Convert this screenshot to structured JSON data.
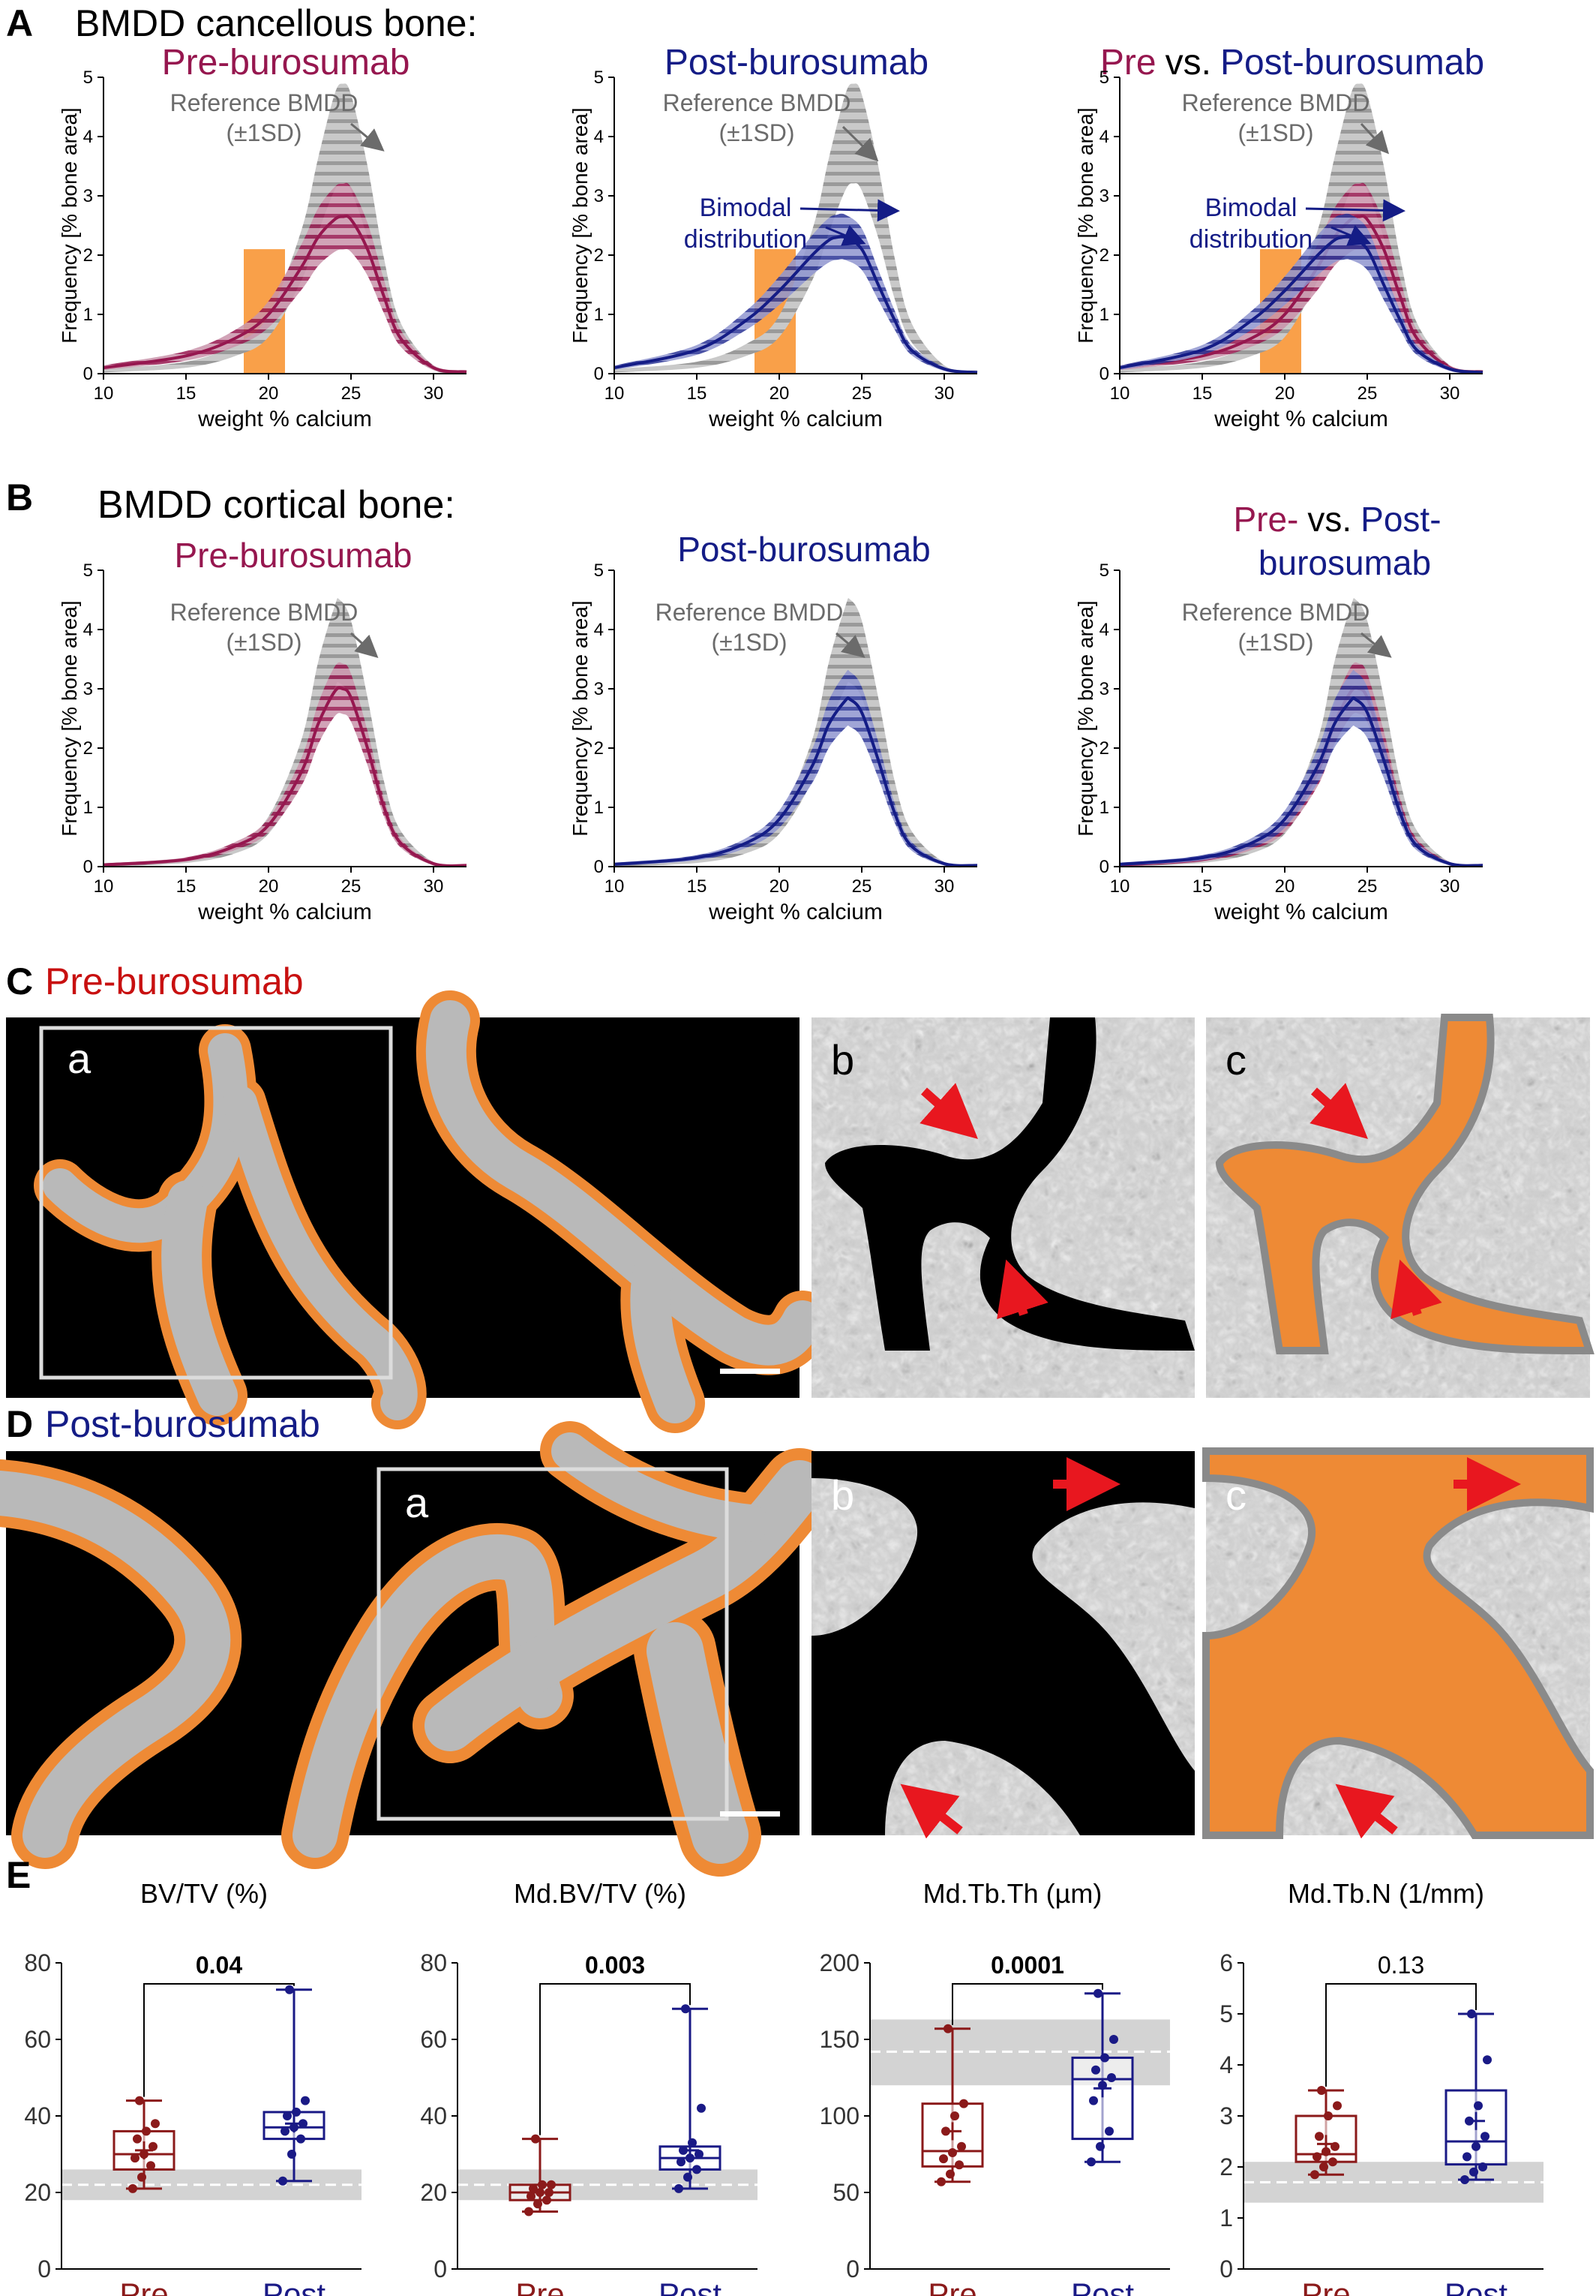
{
  "panel_letters": [
    "A",
    "B",
    "C",
    "D",
    "E"
  ],
  "section_A_title": "BMDD cancellous bone:",
  "section_B_title": "BMDD cortical bone:",
  "section_C_title": "Pre-burosumab",
  "section_D_title": "Post-burosumab",
  "image_tiles": [
    "a",
    "b",
    "c"
  ],
  "colors": {
    "pre": "#96174f",
    "post": "#141c86",
    "reference": "#9a9a9a",
    "annotation_gray": "#6b6b6b",
    "highlight": "#f9a049",
    "bone_orange": "#ee8a35",
    "arrow_red": "#e8171f",
    "box_pre": "#8b1a1a",
    "box_post": "#1a1a86",
    "ref_band": "#d3d3d3"
  },
  "bmdd_axes": {
    "xlabel": "weight % calcium",
    "ylabel": "Frequency [% bone area]",
    "xlim": [
      10,
      32
    ],
    "ylim": [
      0,
      5
    ],
    "xticks": [
      "10",
      "15",
      "20",
      "25",
      "30"
    ],
    "yticks": [
      "0",
      "1",
      "2",
      "3",
      "4",
      "5"
    ]
  },
  "annotations": {
    "reference_line1": "Reference BMDD",
    "reference_line2": "(±1SD)",
    "bimodal_line1": "Bimodal",
    "bimodal_line2": "distribution"
  },
  "chart_titles": {
    "pre": "Pre-burosumab",
    "post": "Post-burosumab",
    "pre_word": "Pre",
    "vs_word": "vs.",
    "post_word": "Post-burosumab",
    "b3_line1_pre": "Pre-",
    "b3_line1_vs": "vs.",
    "b3_line1_post": "Post-",
    "b3_line2": "burosumab"
  },
  "chart_data": [
    {
      "type": "area",
      "panel": "A1",
      "highlight_range_x": [
        18.5,
        21
      ],
      "highlight_height_y": 2.1,
      "series": [
        {
          "name": "Reference BMDD",
          "x": [
            10,
            15,
            18,
            20,
            22,
            23,
            24,
            24.5,
            25,
            26,
            27,
            28,
            30,
            32
          ],
          "y": [
            0.05,
            0.15,
            0.4,
            0.8,
            2.0,
            3.0,
            3.9,
            4.05,
            3.9,
            2.9,
            1.6,
            0.7,
            0.1,
            0.03
          ],
          "sd": 0.45
        },
        {
          "name": "Pre-burosumab",
          "x": [
            10,
            15,
            18,
            20,
            22,
            23,
            24,
            24.5,
            25,
            26,
            27,
            28,
            30,
            32
          ],
          "y": [
            0.1,
            0.3,
            0.6,
            1.0,
            1.8,
            2.3,
            2.6,
            2.65,
            2.6,
            2.1,
            1.3,
            0.6,
            0.1,
            0.03
          ],
          "sd": 0.45
        }
      ]
    },
    {
      "type": "area",
      "panel": "A2",
      "highlight_range_x": [
        18.5,
        21
      ],
      "highlight_height_y": 2.1,
      "series": [
        {
          "name": "Reference BMDD",
          "x": [
            10,
            15,
            18,
            20,
            22,
            23,
            24,
            24.5,
            25,
            26,
            27,
            28,
            30,
            32
          ],
          "y": [
            0.05,
            0.15,
            0.4,
            0.8,
            2.0,
            3.0,
            3.9,
            4.05,
            3.9,
            2.9,
            1.6,
            0.7,
            0.1,
            0.03
          ],
          "sd": 0.45
        },
        {
          "name": "Post-burosumab",
          "x": [
            10,
            15,
            18,
            20,
            22,
            23,
            23.5,
            24,
            25,
            26,
            27,
            28,
            30,
            32
          ],
          "y": [
            0.1,
            0.4,
            0.9,
            1.4,
            2.0,
            2.25,
            2.3,
            2.3,
            2.1,
            1.5,
            0.9,
            0.4,
            0.08,
            0.02
          ],
          "sd": 0.35
        }
      ]
    },
    {
      "type": "area",
      "panel": "A3",
      "highlight_range_x": [
        18.5,
        21
      ],
      "highlight_height_y": 2.1,
      "series": [
        {
          "name": "Reference BMDD",
          "x": [
            10,
            15,
            18,
            20,
            22,
            23,
            24,
            24.5,
            25,
            26,
            27,
            28,
            30,
            32
          ],
          "y": [
            0.05,
            0.15,
            0.4,
            0.8,
            2.0,
            3.0,
            3.9,
            4.05,
            3.9,
            2.9,
            1.6,
            0.7,
            0.1,
            0.03
          ],
          "sd": 0.45
        },
        {
          "name": "Pre-burosumab",
          "x": [
            10,
            15,
            18,
            20,
            22,
            23,
            24,
            24.5,
            25,
            26,
            27,
            28,
            30,
            32
          ],
          "y": [
            0.1,
            0.3,
            0.6,
            1.0,
            1.8,
            2.3,
            2.6,
            2.65,
            2.6,
            2.1,
            1.3,
            0.6,
            0.1,
            0.03
          ],
          "sd": 0.45
        },
        {
          "name": "Post-burosumab",
          "x": [
            10,
            15,
            18,
            20,
            22,
            23,
            23.5,
            24,
            25,
            26,
            27,
            28,
            30,
            32
          ],
          "y": [
            0.1,
            0.4,
            0.9,
            1.4,
            2.0,
            2.25,
            2.3,
            2.3,
            2.1,
            1.5,
            0.9,
            0.4,
            0.08,
            0.02
          ],
          "sd": 0.35
        }
      ]
    },
    {
      "type": "area",
      "panel": "B1",
      "series": [
        {
          "name": "Reference BMDD",
          "x": [
            10,
            15,
            18,
            20,
            22,
            23,
            24,
            24.3,
            25,
            26,
            27,
            28,
            30,
            32
          ],
          "y": [
            0.03,
            0.1,
            0.3,
            0.7,
            1.8,
            2.9,
            3.7,
            3.8,
            3.5,
            2.4,
            1.2,
            0.5,
            0.05,
            0.02
          ],
          "sd": 0.4
        },
        {
          "name": "Pre-burosumab",
          "x": [
            10,
            15,
            18,
            20,
            22,
            23,
            24,
            24.5,
            25,
            26,
            27,
            28,
            30,
            32
          ],
          "y": [
            0.03,
            0.12,
            0.35,
            0.7,
            1.6,
            2.4,
            2.95,
            3.0,
            2.85,
            2.0,
            1.0,
            0.4,
            0.05,
            0.02
          ],
          "sd": 0.3
        }
      ]
    },
    {
      "type": "area",
      "panel": "B2",
      "series": [
        {
          "name": "Reference BMDD",
          "x": [
            10,
            15,
            18,
            20,
            22,
            23,
            24,
            24.3,
            25,
            26,
            27,
            28,
            30,
            32
          ],
          "y": [
            0.03,
            0.1,
            0.3,
            0.7,
            1.8,
            2.9,
            3.7,
            3.8,
            3.5,
            2.4,
            1.2,
            0.5,
            0.05,
            0.02
          ],
          "sd": 0.4
        },
        {
          "name": "Post-burosumab",
          "x": [
            10,
            15,
            18,
            20,
            22,
            23,
            24,
            24.3,
            25,
            26,
            27,
            28,
            30,
            32
          ],
          "y": [
            0.04,
            0.15,
            0.4,
            0.8,
            1.7,
            2.4,
            2.8,
            2.82,
            2.6,
            1.8,
            0.9,
            0.35,
            0.05,
            0.02
          ],
          "sd": 0.35
        }
      ]
    },
    {
      "type": "area",
      "panel": "B3",
      "series": [
        {
          "name": "Reference BMDD",
          "x": [
            10,
            15,
            18,
            20,
            22,
            23,
            24,
            24.3,
            25,
            26,
            27,
            28,
            30,
            32
          ],
          "y": [
            0.03,
            0.1,
            0.3,
            0.7,
            1.8,
            2.9,
            3.7,
            3.8,
            3.5,
            2.4,
            1.2,
            0.5,
            0.05,
            0.02
          ],
          "sd": 0.4
        },
        {
          "name": "Pre-burosumab",
          "x": [
            10,
            15,
            18,
            20,
            22,
            23,
            24,
            24.5,
            25,
            26,
            27,
            28,
            30,
            32
          ],
          "y": [
            0.03,
            0.12,
            0.35,
            0.7,
            1.6,
            2.4,
            2.95,
            3.0,
            2.85,
            2.0,
            1.0,
            0.4,
            0.05,
            0.02
          ],
          "sd": 0.3
        },
        {
          "name": "Post-burosumab",
          "x": [
            10,
            15,
            18,
            20,
            22,
            23,
            24,
            24.3,
            25,
            26,
            27,
            28,
            30,
            32
          ],
          "y": [
            0.04,
            0.15,
            0.4,
            0.8,
            1.7,
            2.4,
            2.8,
            2.82,
            2.6,
            1.8,
            0.9,
            0.35,
            0.05,
            0.02
          ],
          "sd": 0.35
        }
      ]
    },
    {
      "type": "box",
      "panel": "E1",
      "title": "BV/TV (%)",
      "ylim": [
        0,
        80
      ],
      "yticks": [
        "0",
        "20",
        "40",
        "60",
        "80"
      ],
      "categories": [
        "Pre",
        "Post"
      ],
      "reference_band": [
        18,
        26
      ],
      "reference_mean": 22,
      "p_value": "0.04",
      "p_bold": true,
      "groups": [
        {
          "name": "Pre",
          "min": 21,
          "q1": 26,
          "median": 30,
          "q3": 36,
          "max": 44,
          "mean": 31,
          "points": [
            21,
            24,
            27,
            29,
            30,
            32,
            34,
            36,
            38,
            44
          ]
        },
        {
          "name": "Post",
          "min": 23,
          "q1": 34,
          "median": 37,
          "q3": 41,
          "max": 73,
          "mean": 38,
          "points": [
            23,
            30,
            34,
            36,
            37,
            38,
            40,
            41,
            44,
            73
          ]
        }
      ]
    },
    {
      "type": "box",
      "panel": "E2",
      "title": "Md.BV/TV (%)",
      "ylim": [
        0,
        80
      ],
      "yticks": [
        "0",
        "20",
        "40",
        "60",
        "80"
      ],
      "categories": [
        "Pre",
        "Post"
      ],
      "reference_band": [
        18,
        26
      ],
      "reference_mean": 22,
      "p_value": "0.003",
      "p_bold": true,
      "groups": [
        {
          "name": "Pre",
          "min": 15,
          "q1": 18,
          "median": 20,
          "q3": 22,
          "max": 34,
          "mean": 20,
          "points": [
            15,
            17,
            18,
            19,
            20,
            20,
            21,
            22,
            22,
            34
          ]
        },
        {
          "name": "Post",
          "min": 21,
          "q1": 26,
          "median": 29,
          "q3": 32,
          "max": 68,
          "mean": 31,
          "points": [
            21,
            24,
            26,
            28,
            29,
            30,
            31,
            33,
            42,
            68
          ]
        }
      ]
    },
    {
      "type": "box",
      "panel": "E3",
      "title": "Md.Tb.Th (µm)",
      "ylim": [
        0,
        200
      ],
      "yticks": [
        "0",
        "50",
        "100",
        "150",
        "200"
      ],
      "categories": [
        "Pre",
        "Post"
      ],
      "reference_band": [
        120,
        163
      ],
      "reference_mean": 142,
      "p_value": "0.0001",
      "p_bold": true,
      "groups": [
        {
          "name": "Pre",
          "min": 57,
          "q1": 67,
          "median": 77,
          "q3": 108,
          "max": 157,
          "mean": 90,
          "points": [
            57,
            62,
            68,
            72,
            76,
            80,
            90,
            100,
            108,
            157
          ]
        },
        {
          "name": "Post",
          "min": 70,
          "q1": 85,
          "median": 124,
          "q3": 138,
          "max": 180,
          "mean": 118,
          "points": [
            70,
            80,
            90,
            110,
            120,
            125,
            130,
            138,
            150,
            180
          ]
        }
      ]
    },
    {
      "type": "box",
      "panel": "E4",
      "title": "Md.Tb.N (1/mm)",
      "ylim": [
        0,
        6
      ],
      "yticks": [
        "0",
        "1",
        "2",
        "3",
        "4",
        "5",
        "6"
      ],
      "categories": [
        "Pre",
        "Post"
      ],
      "reference_band": [
        1.3,
        2.1
      ],
      "reference_mean": 1.7,
      "p_value": "0.13",
      "p_bold": false,
      "groups": [
        {
          "name": "Pre",
          "min": 1.85,
          "q1": 2.1,
          "median": 2.25,
          "q3": 3.0,
          "max": 3.5,
          "mean": 2.45,
          "points": [
            1.85,
            2.0,
            2.1,
            2.2,
            2.3,
            2.4,
            2.6,
            3.0,
            3.2,
            3.5
          ]
        },
        {
          "name": "Post",
          "min": 1.75,
          "q1": 2.05,
          "median": 2.5,
          "q3": 3.5,
          "max": 5.0,
          "mean": 2.9,
          "points": [
            1.75,
            1.9,
            2.0,
            2.2,
            2.4,
            2.6,
            2.9,
            3.2,
            4.1,
            5.0
          ]
        }
      ]
    }
  ]
}
